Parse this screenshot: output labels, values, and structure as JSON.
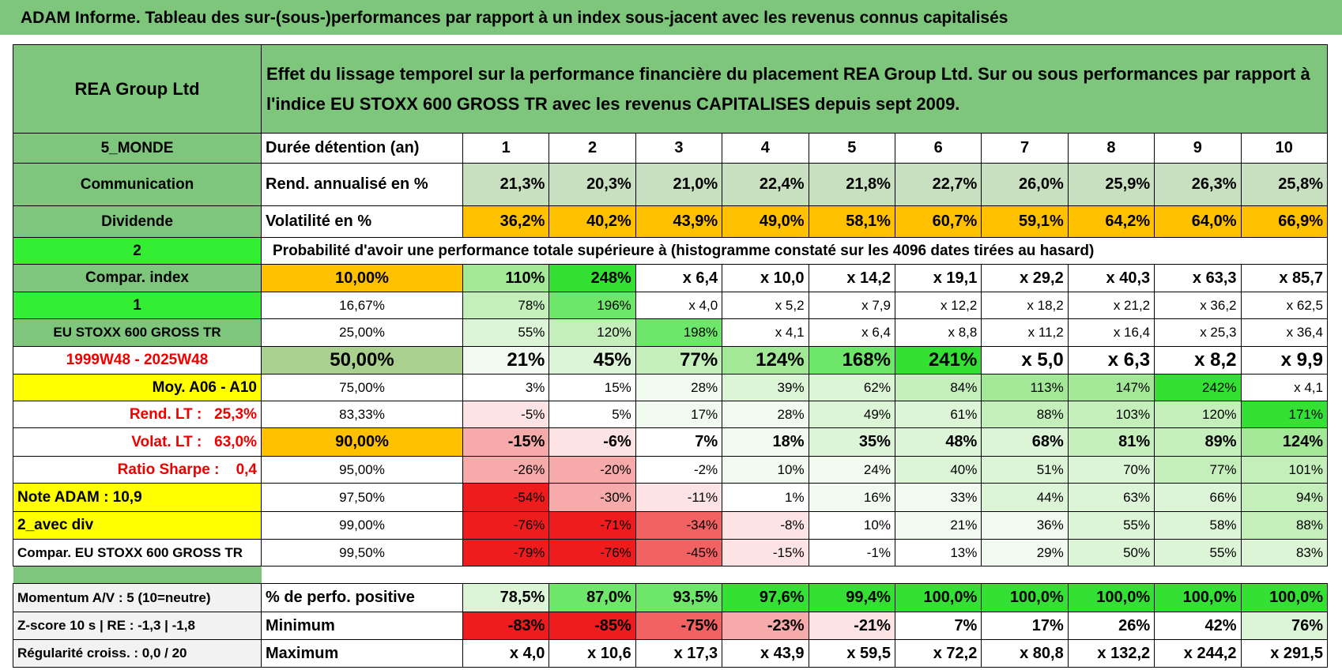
{
  "header": {
    "title": "ADAM Informe. Tableau des sur-(sous-)performances par rapport à un index sous-jacent avec les revenus connus capitalisés"
  },
  "table": {
    "name": "REA Group Ltd",
    "description": "Effet du lissage temporel sur la performance financière du placement REA Group Ltd. Sur ou sous performances par rapport à l'indice EU STOXX 600 GROSS TR avec les revenus CAPITALISES depuis sept 2009.",
    "rows": [
      [
        "5_MONDE",
        "Durée détention (an)",
        "1",
        "2",
        "3",
        "4",
        "5",
        "6",
        "7",
        "8",
        "9",
        "10"
      ],
      [
        "Communication",
        "Rend. annualisé en %",
        "21,3%",
        "20,3%",
        "21,0%",
        "22,4%",
        "21,8%",
        "22,7%",
        "26,0%",
        "25,9%",
        "26,3%",
        "25,8%"
      ],
      [
        "Dividende",
        "Volatilité en %",
        "36,2%",
        "40,2%",
        "43,9%",
        "49,0%",
        "58,1%",
        "60,7%",
        "59,1%",
        "64,2%",
        "64,0%",
        "66,9%"
      ],
      [
        "2",
        "Probabilité d'avoir une performance totale supérieure à (histogramme constaté sur les 4096 dates tirées au hasard)"
      ],
      [
        "Compar. index",
        "10,00%",
        "110%",
        "248%",
        "x 6,4",
        "x 10,0",
        "x 14,2",
        "x 19,1",
        "x 29,2",
        "x 40,3",
        "x 63,3",
        "x 85,7"
      ],
      [
        "1",
        "16,67%",
        "78%",
        "196%",
        "x 4,0",
        "x 5,2",
        "x 7,9",
        "x 12,2",
        "x 18,2",
        "x 21,2",
        "x 36,2",
        "x 62,5"
      ],
      [
        "EU STOXX 600 GROSS TR",
        "25,00%",
        "55%",
        "120%",
        "198%",
        "x 4,1",
        "x 6,4",
        "x 8,8",
        "x 11,2",
        "x 16,4",
        "x 25,3",
        "x 36,4"
      ],
      [
        "1999W48 - 2025W48",
        "50,00%",
        "21%",
        "45%",
        "77%",
        "124%",
        "168%",
        "241%",
        "x 5,0",
        "x 6,3",
        "x 8,2",
        "x 9,9"
      ],
      [
        "Moy. A06 - A10",
        "75,00%",
        "3%",
        "15%",
        "28%",
        "39%",
        "62%",
        "84%",
        "113%",
        "147%",
        "242%",
        "x 4,1"
      ],
      [
        "Rend. LT :   25,3%",
        "83,33%",
        "-5%",
        "5%",
        "17%",
        "28%",
        "49%",
        "61%",
        "88%",
        "103%",
        "120%",
        "171%"
      ],
      [
        "Volat. LT :   63,0%",
        "90,00%",
        "-15%",
        "-6%",
        "7%",
        "18%",
        "35%",
        "48%",
        "68%",
        "81%",
        "89%",
        "124%"
      ],
      [
        "Ratio Sharpe :    0,4",
        "95,00%",
        "-26%",
        "-20%",
        "-2%",
        "10%",
        "24%",
        "40%",
        "51%",
        "70%",
        "77%",
        "101%"
      ],
      [
        "Note ADAM : 10,9",
        "97,50%",
        "-54%",
        "-30%",
        "-11%",
        "1%",
        "16%",
        "33%",
        "44%",
        "63%",
        "66%",
        "94%"
      ],
      [
        "2_avec div",
        "99,00%",
        "-76%",
        "-71%",
        "-34%",
        "-8%",
        "10%",
        "21%",
        "36%",
        "55%",
        "58%",
        "88%"
      ],
      [
        "Compar. EU STOXX 600 GROSS TR",
        "99,50%",
        "-79%",
        "-76%",
        "-45%",
        "-15%",
        "-1%",
        "13%",
        "29%",
        "50%",
        "55%",
        "83%"
      ],
      [
        "Momentum A/V : 5 (10=neutre)",
        "% de perfo. positive",
        "78,5%",
        "87,0%",
        "93,5%",
        "97,6%",
        "99,4%",
        "100,0%",
        "100,0%",
        "100,0%",
        "100,0%",
        "100,0%"
      ],
      [
        "Z-score 10 s | RE : -1,3 | -1,8",
        "Minimum",
        "-83%",
        "-85%",
        "-75%",
        "-23%",
        "-21%",
        "7%",
        "17%",
        "26%",
        "42%",
        "76%"
      ],
      [
        "Régularité croiss. : 0,0 / 20",
        "Maximum",
        "x 4,0",
        "x 10,6",
        "x 17,3",
        "x 43,9",
        "x 59,5",
        "x 72,2",
        "x 80,8",
        "x 132,2",
        "x 244,2",
        "x 291,5"
      ]
    ]
  }
}
